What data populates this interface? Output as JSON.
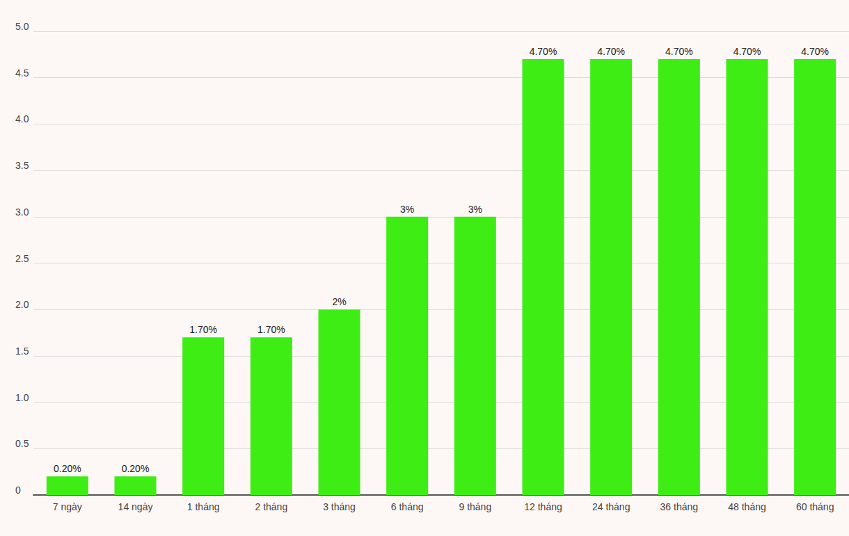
{
  "chart_data": {
    "type": "bar",
    "categories": [
      "7 ngày",
      "14 ngày",
      "1 tháng",
      "2 tháng",
      "3 tháng",
      "6 tháng",
      "9 tháng",
      "12 tháng",
      "24 tháng",
      "36 tháng",
      "48 tháng",
      "60 tháng"
    ],
    "values": [
      0.2,
      0.2,
      1.7,
      1.7,
      2,
      3,
      3,
      4.7,
      4.7,
      4.7,
      4.7,
      4.7
    ],
    "value_labels": [
      "0.20%",
      "0.20%",
      "1.70%",
      "1.70%",
      "2%",
      "3%",
      "3%",
      "4.70%",
      "4.70%",
      "4.70%",
      "4.70%",
      "4.70%"
    ],
    "color": "#3ded14",
    "ylim": [
      0,
      5
    ],
    "yticks": [
      0,
      0.5,
      {
        "value": 1,
        "label": "1.0"
      },
      1.5,
      {
        "value": 2,
        "label": "2.0"
      },
      2.5,
      {
        "value": 3,
        "label": "3.0"
      },
      3.5,
      {
        "value": 4,
        "label": "4.0"
      },
      4.5,
      {
        "value": 5,
        "label": "5.0"
      }
    ],
    "grid": true,
    "data_labels": true
  }
}
